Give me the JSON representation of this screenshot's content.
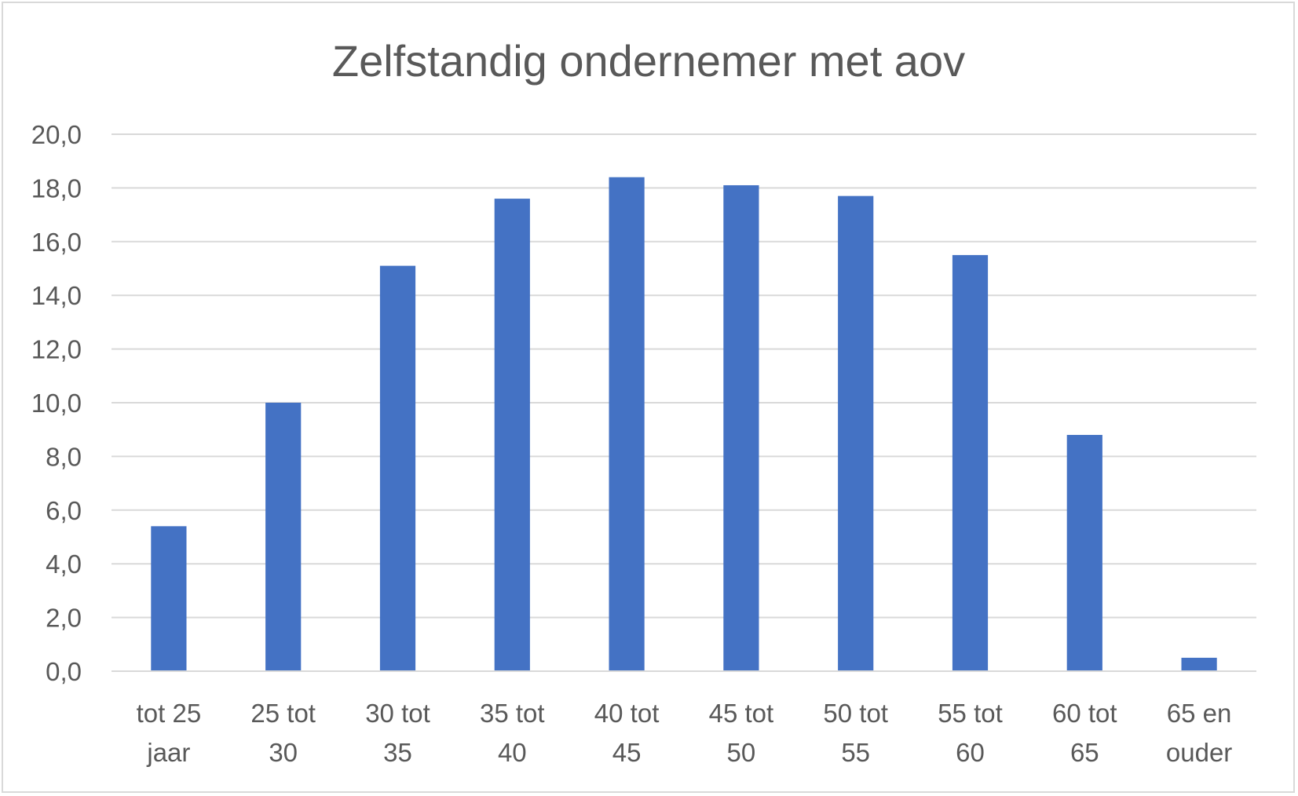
{
  "chart_data": {
    "type": "bar",
    "title": "Zelfstandig ondernemer met aov",
    "categories": [
      [
        "tot 25",
        "jaar"
      ],
      [
        "25 tot",
        "30"
      ],
      [
        "30 tot",
        "35"
      ],
      [
        "35 tot",
        "40"
      ],
      [
        "40 tot",
        "45"
      ],
      [
        "45 tot",
        "50"
      ],
      [
        "50 tot",
        "55"
      ],
      [
        "55 tot",
        "60"
      ],
      [
        "60 tot",
        "65"
      ],
      [
        "65 en",
        "ouder"
      ]
    ],
    "values": [
      5.4,
      10.0,
      15.1,
      17.6,
      18.4,
      18.1,
      17.7,
      15.5,
      8.8,
      0.5
    ],
    "ylim": [
      0,
      20
    ],
    "yticks": [
      "0,0",
      "2,0",
      "4,0",
      "6,0",
      "8,0",
      "10,0",
      "12,0",
      "14,0",
      "16,0",
      "18,0",
      "20,0"
    ],
    "grid": true,
    "bar_color": "#4472c4"
  }
}
